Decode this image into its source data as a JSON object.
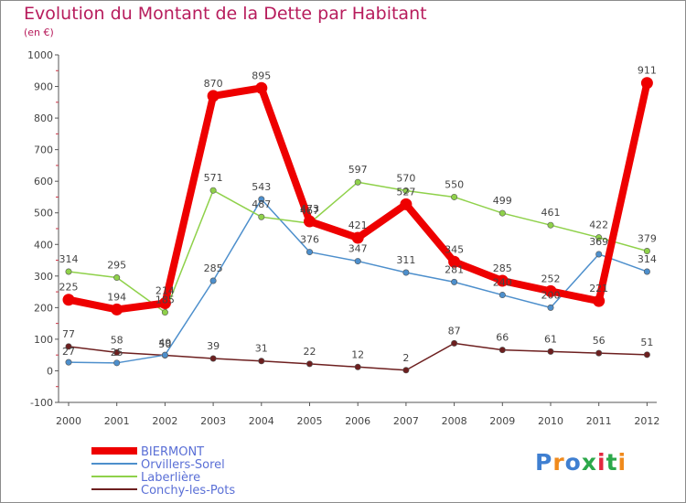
{
  "title": "Evolution du Montant de la Dette par Habitant",
  "unit_label": "(en €)",
  "logo": {
    "text": "Proxiti"
  },
  "chart_data": {
    "type": "line",
    "x": [
      "2000",
      "2001",
      "2002",
      "2003",
      "2004",
      "2005",
      "2006",
      "2007",
      "2008",
      "2009",
      "2010",
      "2011",
      "2012"
    ],
    "ylim": [
      -100,
      1000
    ],
    "yticks": [
      -100,
      0,
      100,
      200,
      300,
      400,
      500,
      600,
      700,
      800,
      900,
      1000
    ],
    "grid": false,
    "legend_position": "bottom-left",
    "series": [
      {
        "name": "BIERMONT",
        "color": "#ee0000",
        "width": "thick",
        "labels": "all",
        "values": [
          225,
          194,
          214,
          870,
          895,
          473,
          421,
          527,
          345,
          285,
          252,
          221,
          911
        ]
      },
      {
        "name": "Orvillers-Sorel",
        "color": "#4d8fcc",
        "width": "thin",
        "labels": "all",
        "values": [
          27,
          25,
          50,
          285,
          543,
          376,
          347,
          311,
          281,
          240,
          200,
          369,
          314
        ]
      },
      {
        "name": "Laberlière",
        "color": "#8fd14a",
        "width": "thin",
        "labels": "partial",
        "values": [
          314,
          295,
          185,
          571,
          487,
          467,
          597,
          570,
          550,
          499,
          461,
          422,
          379
        ]
      },
      {
        "name": "Conchy-les-Pots",
        "color": "#6d1f1f",
        "width": "thin",
        "labels": "all",
        "values": [
          77,
          58,
          49,
          39,
          31,
          22,
          12,
          2,
          87,
          66,
          61,
          56,
          51
        ]
      }
    ]
  }
}
